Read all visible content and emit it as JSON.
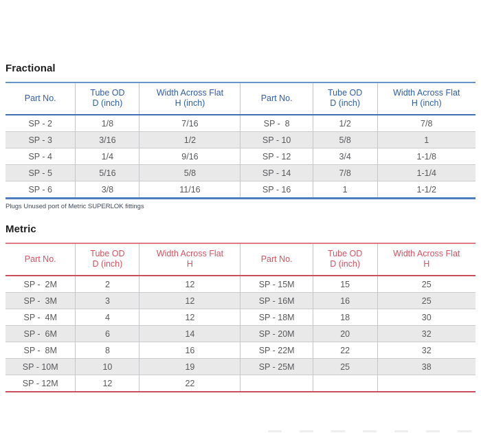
{
  "fractional": {
    "title": "Fractional",
    "accent_color": "#2e5ea8",
    "border_color": "#4d7dc0",
    "headers": [
      [
        "Part No."
      ],
      [
        "Tube OD",
        "D (inch)"
      ],
      [
        "Width Across Flat",
        "H (inch)"
      ],
      [
        "Part No."
      ],
      [
        "Tube OD",
        "D (inch)"
      ],
      [
        "Width Across Flat",
        "H (inch)"
      ]
    ],
    "rows": [
      [
        "SP - 2",
        "1/8",
        "7/16",
        "SP -  8",
        "1/2",
        "7/8"
      ],
      [
        "SP - 3",
        "3/16",
        "1/2",
        "SP - 10",
        "5/8",
        "1"
      ],
      [
        "SP - 4",
        "1/4",
        "9/16",
        "SP - 12",
        "3/4",
        "1-1/8"
      ],
      [
        "SP - 5",
        "5/16",
        "5/8",
        "SP - 14",
        "7/8",
        "1-1/4"
      ],
      [
        "SP - 6",
        "3/8",
        "11/16",
        "SP - 16",
        "1",
        "1-1/2"
      ]
    ]
  },
  "footnote": "Plugs Unused port of Metric SUPERLOK fittings",
  "metric": {
    "title": "Metric",
    "accent_color": "#d5525e",
    "border_color": "#c94f5a",
    "headers": [
      [
        "Part No."
      ],
      [
        "Tube OD",
        "D (inch)"
      ],
      [
        "Width Across Flat",
        "H"
      ],
      [
        "Part No."
      ],
      [
        "Tube OD",
        "D (inch)"
      ],
      [
        "Width Across Flat",
        "H"
      ]
    ],
    "rows": [
      [
        "SP -  2M",
        "2",
        "12",
        "SP - 15M",
        "15",
        "25"
      ],
      [
        "SP -  3M",
        "3",
        "12",
        "SP - 16M",
        "16",
        "25"
      ],
      [
        "SP -  4M",
        "4",
        "12",
        "SP - 18M",
        "18",
        "30"
      ],
      [
        "SP -  6M",
        "6",
        "14",
        "SP - 20M",
        "20",
        "32"
      ],
      [
        "SP -  8M",
        "8",
        "16",
        "SP - 22M",
        "22",
        "32"
      ],
      [
        "SP - 10M",
        "10",
        "19",
        "SP - 25M",
        "25",
        "38"
      ],
      [
        "SP - 12M",
        "12",
        "22",
        "",
        "",
        ""
      ]
    ]
  },
  "table_stripe_color": "#e9e9ea",
  "column_widths_pct": [
    14.9,
    13.6,
    21.5,
    15.4,
    13.7,
    20.9
  ]
}
